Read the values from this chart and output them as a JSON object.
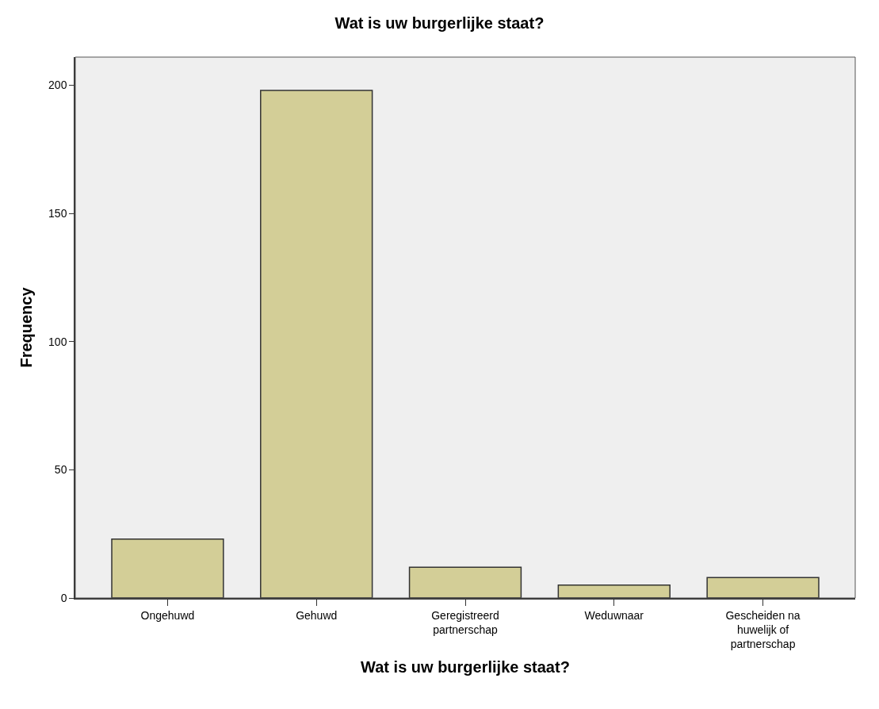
{
  "chart_data": {
    "type": "bar",
    "title": "Wat is uw burgerlijke staat?",
    "xlabel": "Wat is uw burgerlijke staat?",
    "ylabel": "Frequency",
    "categories": [
      "Ongehuwd",
      "Gehuwd",
      "Geregistreerd partnerschap",
      "Weduwnaar",
      "Gescheiden na huwelijk of partnerschap"
    ],
    "values": [
      23,
      198,
      12,
      5,
      8
    ],
    "color": "#d3ce97",
    "ylim": [
      0,
      211
    ],
    "yticks": [
      0,
      50,
      100,
      150,
      200
    ],
    "grid": false
  }
}
